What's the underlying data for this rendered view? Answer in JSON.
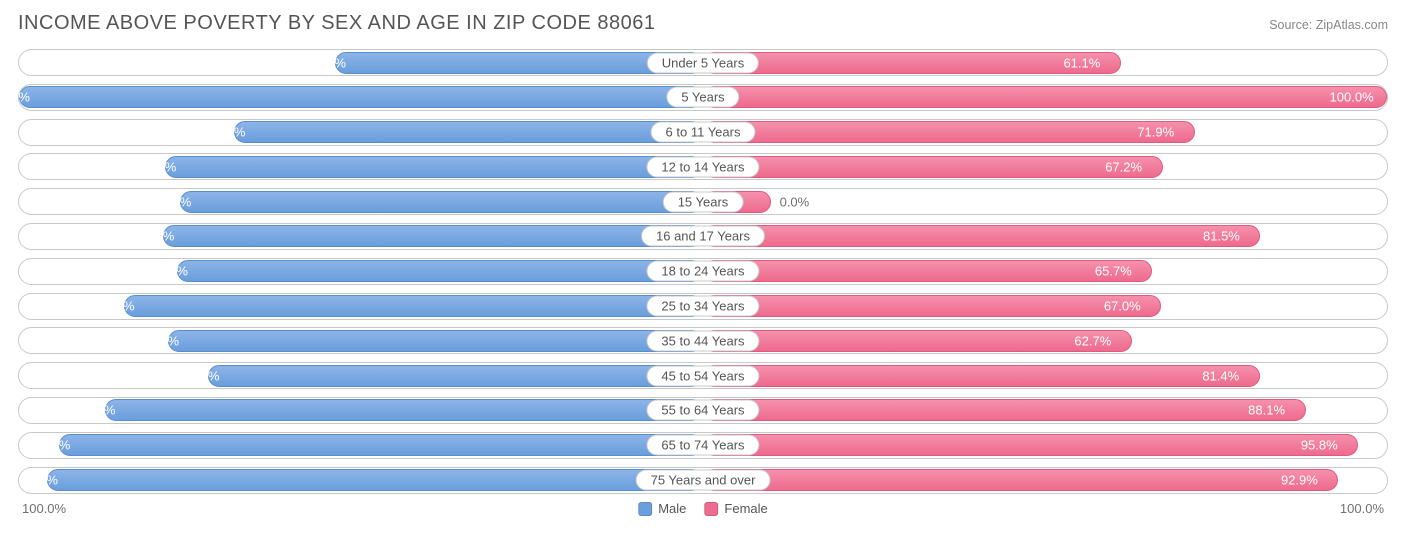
{
  "title": "INCOME ABOVE POVERTY BY SEX AND AGE IN ZIP CODE 88061",
  "source": "Source: ZipAtlas.com",
  "chart": {
    "type": "diverging-bar-horizontal",
    "male_color": "#6a9edc",
    "female_color": "#ee6a8e",
    "border_color": "#c8c8c8",
    "background_color": "#ffffff",
    "text_color": "#555555",
    "value_fontsize": 13,
    "label_fontsize": 13,
    "title_fontsize": 20,
    "axis_left": "100.0%",
    "axis_right": "100.0%",
    "max_value": 100.0,
    "legend": [
      {
        "label": "Male",
        "color": "#6a9edc"
      },
      {
        "label": "Female",
        "color": "#ee6a8e"
      }
    ],
    "rows": [
      {
        "category": "Under 5 Years",
        "male": 53.8,
        "female": 61.1
      },
      {
        "category": "5 Years",
        "male": 100.0,
        "female": 100.0
      },
      {
        "category": "6 to 11 Years",
        "male": 68.5,
        "female": 71.9
      },
      {
        "category": "12 to 14 Years",
        "male": 78.6,
        "female": 67.2
      },
      {
        "category": "15 Years",
        "male": 76.4,
        "female": 0.0,
        "female_bar_override": 10.0
      },
      {
        "category": "16 and 17 Years",
        "male": 78.9,
        "female": 81.5
      },
      {
        "category": "18 to 24 Years",
        "male": 76.9,
        "female": 65.7
      },
      {
        "category": "25 to 34 Years",
        "male": 84.7,
        "female": 67.0
      },
      {
        "category": "35 to 44 Years",
        "male": 78.2,
        "female": 62.7
      },
      {
        "category": "45 to 54 Years",
        "male": 72.3,
        "female": 81.4
      },
      {
        "category": "55 to 64 Years",
        "male": 87.5,
        "female": 88.1
      },
      {
        "category": "65 to 74 Years",
        "male": 94.1,
        "female": 95.8
      },
      {
        "category": "75 Years and over",
        "male": 95.9,
        "female": 92.9
      }
    ]
  }
}
